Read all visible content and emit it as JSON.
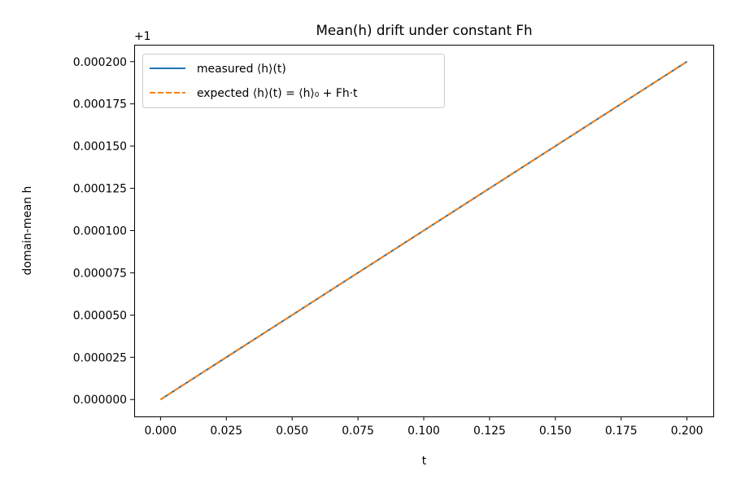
{
  "chart_data": {
    "type": "line",
    "title": "Mean(h) drift under constant Fh",
    "xlabel": "t",
    "ylabel": "domain-mean h",
    "y_offset_label": "+1",
    "xlim": [
      -0.01,
      0.21
    ],
    "ylim": [
      -1e-05,
      0.00021
    ],
    "x_ticks": [
      0.0,
      0.025,
      0.05,
      0.075,
      0.1,
      0.125,
      0.15,
      0.175,
      0.2
    ],
    "x_tick_labels": [
      "0.000",
      "0.025",
      "0.050",
      "0.075",
      "0.100",
      "0.125",
      "0.150",
      "0.175",
      "0.200"
    ],
    "y_ticks": [
      0.0,
      2.5e-05,
      5e-05,
      7.5e-05,
      0.0001,
      0.000125,
      0.00015,
      0.000175,
      0.0002
    ],
    "y_tick_labels": [
      "0.000000",
      "0.000025",
      "0.000050",
      "0.000075",
      "0.000100",
      "0.000125",
      "0.000150",
      "0.000175",
      "0.000200"
    ],
    "grid": false,
    "legend_position": "upper-left",
    "series": [
      {
        "name": "measured ⟨h⟩(t)",
        "color": "#1f77b4",
        "style": "solid",
        "x": [
          0.0,
          0.2
        ],
        "y": [
          0.0,
          0.0002
        ]
      },
      {
        "name": "expected ⟨h⟩(t) = ⟨h⟩₀ + Fh·t",
        "color": "#ff7f0e",
        "style": "dashed",
        "x": [
          0.0,
          0.2
        ],
        "y": [
          0.0,
          0.0002
        ]
      }
    ]
  }
}
